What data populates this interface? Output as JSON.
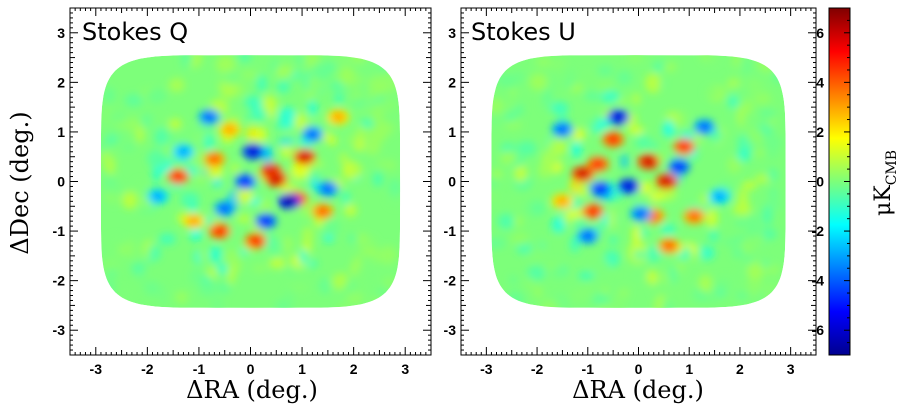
{
  "chart_data": [
    {
      "type": "heatmap",
      "title": "Stokes Q",
      "xlabel": "ΔRA (deg.)",
      "ylabel": "ΔDec (deg.)",
      "xlim": [
        -3.5,
        3.5
      ],
      "ylim": [
        -3.5,
        3.5
      ],
      "xticks": [
        -3,
        -2,
        -1,
        0,
        1,
        2,
        3
      ],
      "yticks": [
        -3,
        -2,
        -1,
        0,
        1,
        2,
        3
      ],
      "field_extent": {
        "x": [
          -2.9,
          2.9
        ],
        "y": [
          -2.55,
          2.55
        ]
      },
      "value_range": [
        -7,
        7
      ],
      "hot_spots": [
        {
          "x": -1.4,
          "y": 0.1,
          "v": 5
        },
        {
          "x": -0.7,
          "y": 0.45,
          "v": 4
        },
        {
          "x": 0.4,
          "y": 0.2,
          "v": 6
        },
        {
          "x": 0.5,
          "y": 0.05,
          "v": 6
        },
        {
          "x": 1.05,
          "y": 0.5,
          "v": 6
        },
        {
          "x": 0.9,
          "y": -0.35,
          "v": 5
        },
        {
          "x": -0.4,
          "y": 1.05,
          "v": 3
        },
        {
          "x": -0.6,
          "y": -1.0,
          "v": 5
        },
        {
          "x": 0.1,
          "y": -1.2,
          "v": 5
        },
        {
          "x": 1.4,
          "y": -0.6,
          "v": 4
        },
        {
          "x": -1.1,
          "y": -0.8,
          "v": 3
        },
        {
          "x": 1.7,
          "y": 1.3,
          "v": 3
        }
      ],
      "cold_spots": [
        {
          "x": 0.05,
          "y": 0.6,
          "v": -6
        },
        {
          "x": 0.75,
          "y": -0.4,
          "v": -7
        },
        {
          "x": -0.1,
          "y": 0.0,
          "v": -5
        },
        {
          "x": -0.8,
          "y": 1.3,
          "v": -4
        },
        {
          "x": 1.2,
          "y": 0.95,
          "v": -4
        },
        {
          "x": -0.5,
          "y": -0.55,
          "v": -4
        },
        {
          "x": 1.5,
          "y": -0.15,
          "v": -4
        },
        {
          "x": 0.3,
          "y": -0.8,
          "v": -5
        },
        {
          "x": -1.8,
          "y": -0.3,
          "v": -3
        },
        {
          "x": -1.3,
          "y": 0.6,
          "v": -3
        }
      ]
    },
    {
      "type": "heatmap",
      "title": "Stokes U",
      "xlabel": "ΔRA (deg.)",
      "ylabel": "",
      "xlim": [
        -3.5,
        3.5
      ],
      "ylim": [
        -3.5,
        3.5
      ],
      "xticks": [
        -3,
        -2,
        -1,
        0,
        1,
        2,
        3
      ],
      "yticks": [
        -3,
        -2,
        -1,
        0,
        1,
        2,
        3
      ],
      "field_extent": {
        "x": [
          -2.9,
          2.9
        ],
        "y": [
          -2.55,
          2.55
        ]
      },
      "value_range": [
        -7,
        7
      ],
      "hot_spots": [
        {
          "x": -1.1,
          "y": 0.15,
          "v": 6
        },
        {
          "x": -0.8,
          "y": 0.35,
          "v": 5
        },
        {
          "x": 0.2,
          "y": 0.4,
          "v": 6
        },
        {
          "x": 0.55,
          "y": 0.0,
          "v": 6
        },
        {
          "x": -0.5,
          "y": 0.85,
          "v": 5
        },
        {
          "x": 0.9,
          "y": 0.7,
          "v": 5
        },
        {
          "x": -0.9,
          "y": -0.6,
          "v": 5
        },
        {
          "x": 0.3,
          "y": -0.7,
          "v": 4
        },
        {
          "x": 0.6,
          "y": -1.3,
          "v": 4
        },
        {
          "x": -1.5,
          "y": -0.4,
          "v": 3
        },
        {
          "x": 1.1,
          "y": -0.7,
          "v": 4
        }
      ],
      "cold_spots": [
        {
          "x": -0.2,
          "y": -0.1,
          "v": -6
        },
        {
          "x": -0.75,
          "y": -0.15,
          "v": -5
        },
        {
          "x": -0.4,
          "y": 1.3,
          "v": -6
        },
        {
          "x": -1.5,
          "y": 1.05,
          "v": -4
        },
        {
          "x": 0.8,
          "y": 0.3,
          "v": -5
        },
        {
          "x": 0.05,
          "y": -0.65,
          "v": -4
        },
        {
          "x": -1.0,
          "y": -1.1,
          "v": -4
        },
        {
          "x": 1.6,
          "y": -0.3,
          "v": -3
        },
        {
          "x": 1.3,
          "y": 1.1,
          "v": -4
        }
      ]
    }
  ],
  "colorbar": {
    "label": "μK",
    "label_subscript": "CMB",
    "range": [
      -7,
      7
    ],
    "ticks": [
      -6,
      -4,
      -2,
      0,
      2,
      4,
      6
    ]
  }
}
